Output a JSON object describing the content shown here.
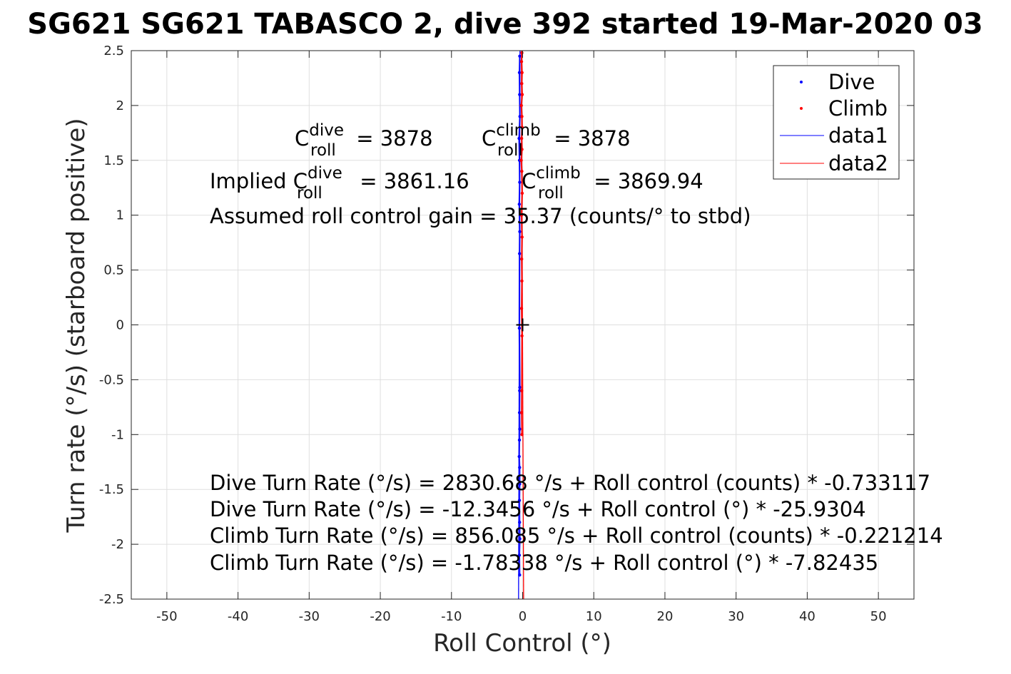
{
  "chart_data": {
    "type": "scatter",
    "title": "SG621 SG621 TABASCO 2, dive 392 started 19-Mar-2020 03",
    "xlabel": "Roll Control (°)",
    "ylabel": "Turn rate (°/s) (starboard positive)",
    "xlim": [
      -55,
      55
    ],
    "ylim": [
      -2.5,
      2.5
    ],
    "xticks": [
      "-50",
      "-40",
      "-30",
      "-20",
      "-10",
      "0",
      "10",
      "20",
      "30",
      "40",
      "50"
    ],
    "yticks": [
      "-2.5",
      "-2",
      "-1.5",
      "-1",
      "-0.5",
      "0",
      "0.5",
      "1",
      "1.5",
      "2",
      "2.5"
    ],
    "grid": true,
    "legend_position": "top-right",
    "legend": [
      "Dive",
      "Climb",
      "data1",
      "data2"
    ],
    "colors": {
      "dive": "#0000ff",
      "climb": "#ff0000",
      "axis": "#262626",
      "grid": "#dfdfdf"
    },
    "series": [
      {
        "name": "Dive",
        "style": "dots",
        "x": [
          -0.4,
          -0.45,
          -0.42,
          -0.38,
          -0.5,
          -0.44,
          -0.41,
          -0.47,
          -0.4,
          -0.43,
          -0.46,
          -0.39,
          -0.42,
          -0.44,
          -0.4,
          -0.45,
          -0.48,
          -0.42,
          -0.41,
          -0.45,
          -0.43,
          -0.39,
          -0.46,
          -0.42
        ],
        "y": [
          2.45,
          2.3,
          2.1,
          1.9,
          1.7,
          1.5,
          1.3,
          1.1,
          0.85,
          0.65,
          -0.03,
          -0.57,
          -0.6,
          -0.8,
          -0.95,
          -1.05,
          -1.2,
          -1.3,
          -1.45,
          -1.6,
          -1.8,
          -1.95,
          -2.1,
          -2.28
        ]
      },
      {
        "name": "Climb",
        "style": "dots",
        "x": [
          -0.1,
          -0.15,
          -0.08,
          -0.12,
          -0.05,
          -0.18,
          -0.1,
          -0.07,
          -0.14,
          -0.09,
          -0.2,
          -0.11,
          -0.06,
          -0.16,
          -0.08,
          -0.13,
          -0.1,
          -0.15,
          -0.09,
          -0.12,
          -0.14,
          -0.1
        ],
        "y": [
          2.48,
          2.4,
          2.3,
          2.2,
          2.1,
          2.0,
          1.9,
          1.8,
          1.7,
          1.6,
          1.5,
          1.4,
          1.2,
          1.0,
          0.8,
          0.6,
          0.4,
          0.15,
          -0.1,
          -0.6,
          -0.8,
          -1.0
        ]
      },
      {
        "name": "data1",
        "style": "line",
        "x": [
          -0.57,
          -0.37
        ],
        "y": [
          -2.5,
          2.5
        ]
      },
      {
        "name": "data2",
        "style": "line",
        "x": [
          0.14,
          -0.18
        ],
        "y": [
          -2.5,
          2.5
        ]
      }
    ],
    "marker": {
      "x": 0.0,
      "y": 0.0,
      "symbol": "+"
    },
    "annotations": {
      "c_dive": {
        "pre": "C",
        "sup": "dive",
        "sub": "roll",
        "post": " = 3878"
      },
      "c_climb": {
        "pre": "C",
        "sup": "climb",
        "sub": "roll",
        "post": " = 3878"
      },
      "implied_dive": {
        "pre": "Implied C",
        "sup": "dive",
        "sub": "roll",
        "post": " = 3861.16"
      },
      "implied_climb": {
        "pre": "C",
        "sup": "climb",
        "sub": "roll",
        "post": " = 3869.94"
      },
      "gain": "Assumed roll control gain = 35.37 (counts/° to stbd)",
      "eq1": "Dive Turn Rate (°/s) = 2830.68 °/s + Roll control (counts) * -0.733117",
      "eq2": "Dive Turn Rate (°/s) = -12.3456 °/s + Roll control (°) * -25.9304",
      "eq3": "Climb Turn Rate (°/s) = 856.085 °/s + Roll control (counts) * -0.221214",
      "eq4": "Climb Turn Rate (°/s) = -1.78338 °/s + Roll control (°) * -7.82435"
    }
  }
}
